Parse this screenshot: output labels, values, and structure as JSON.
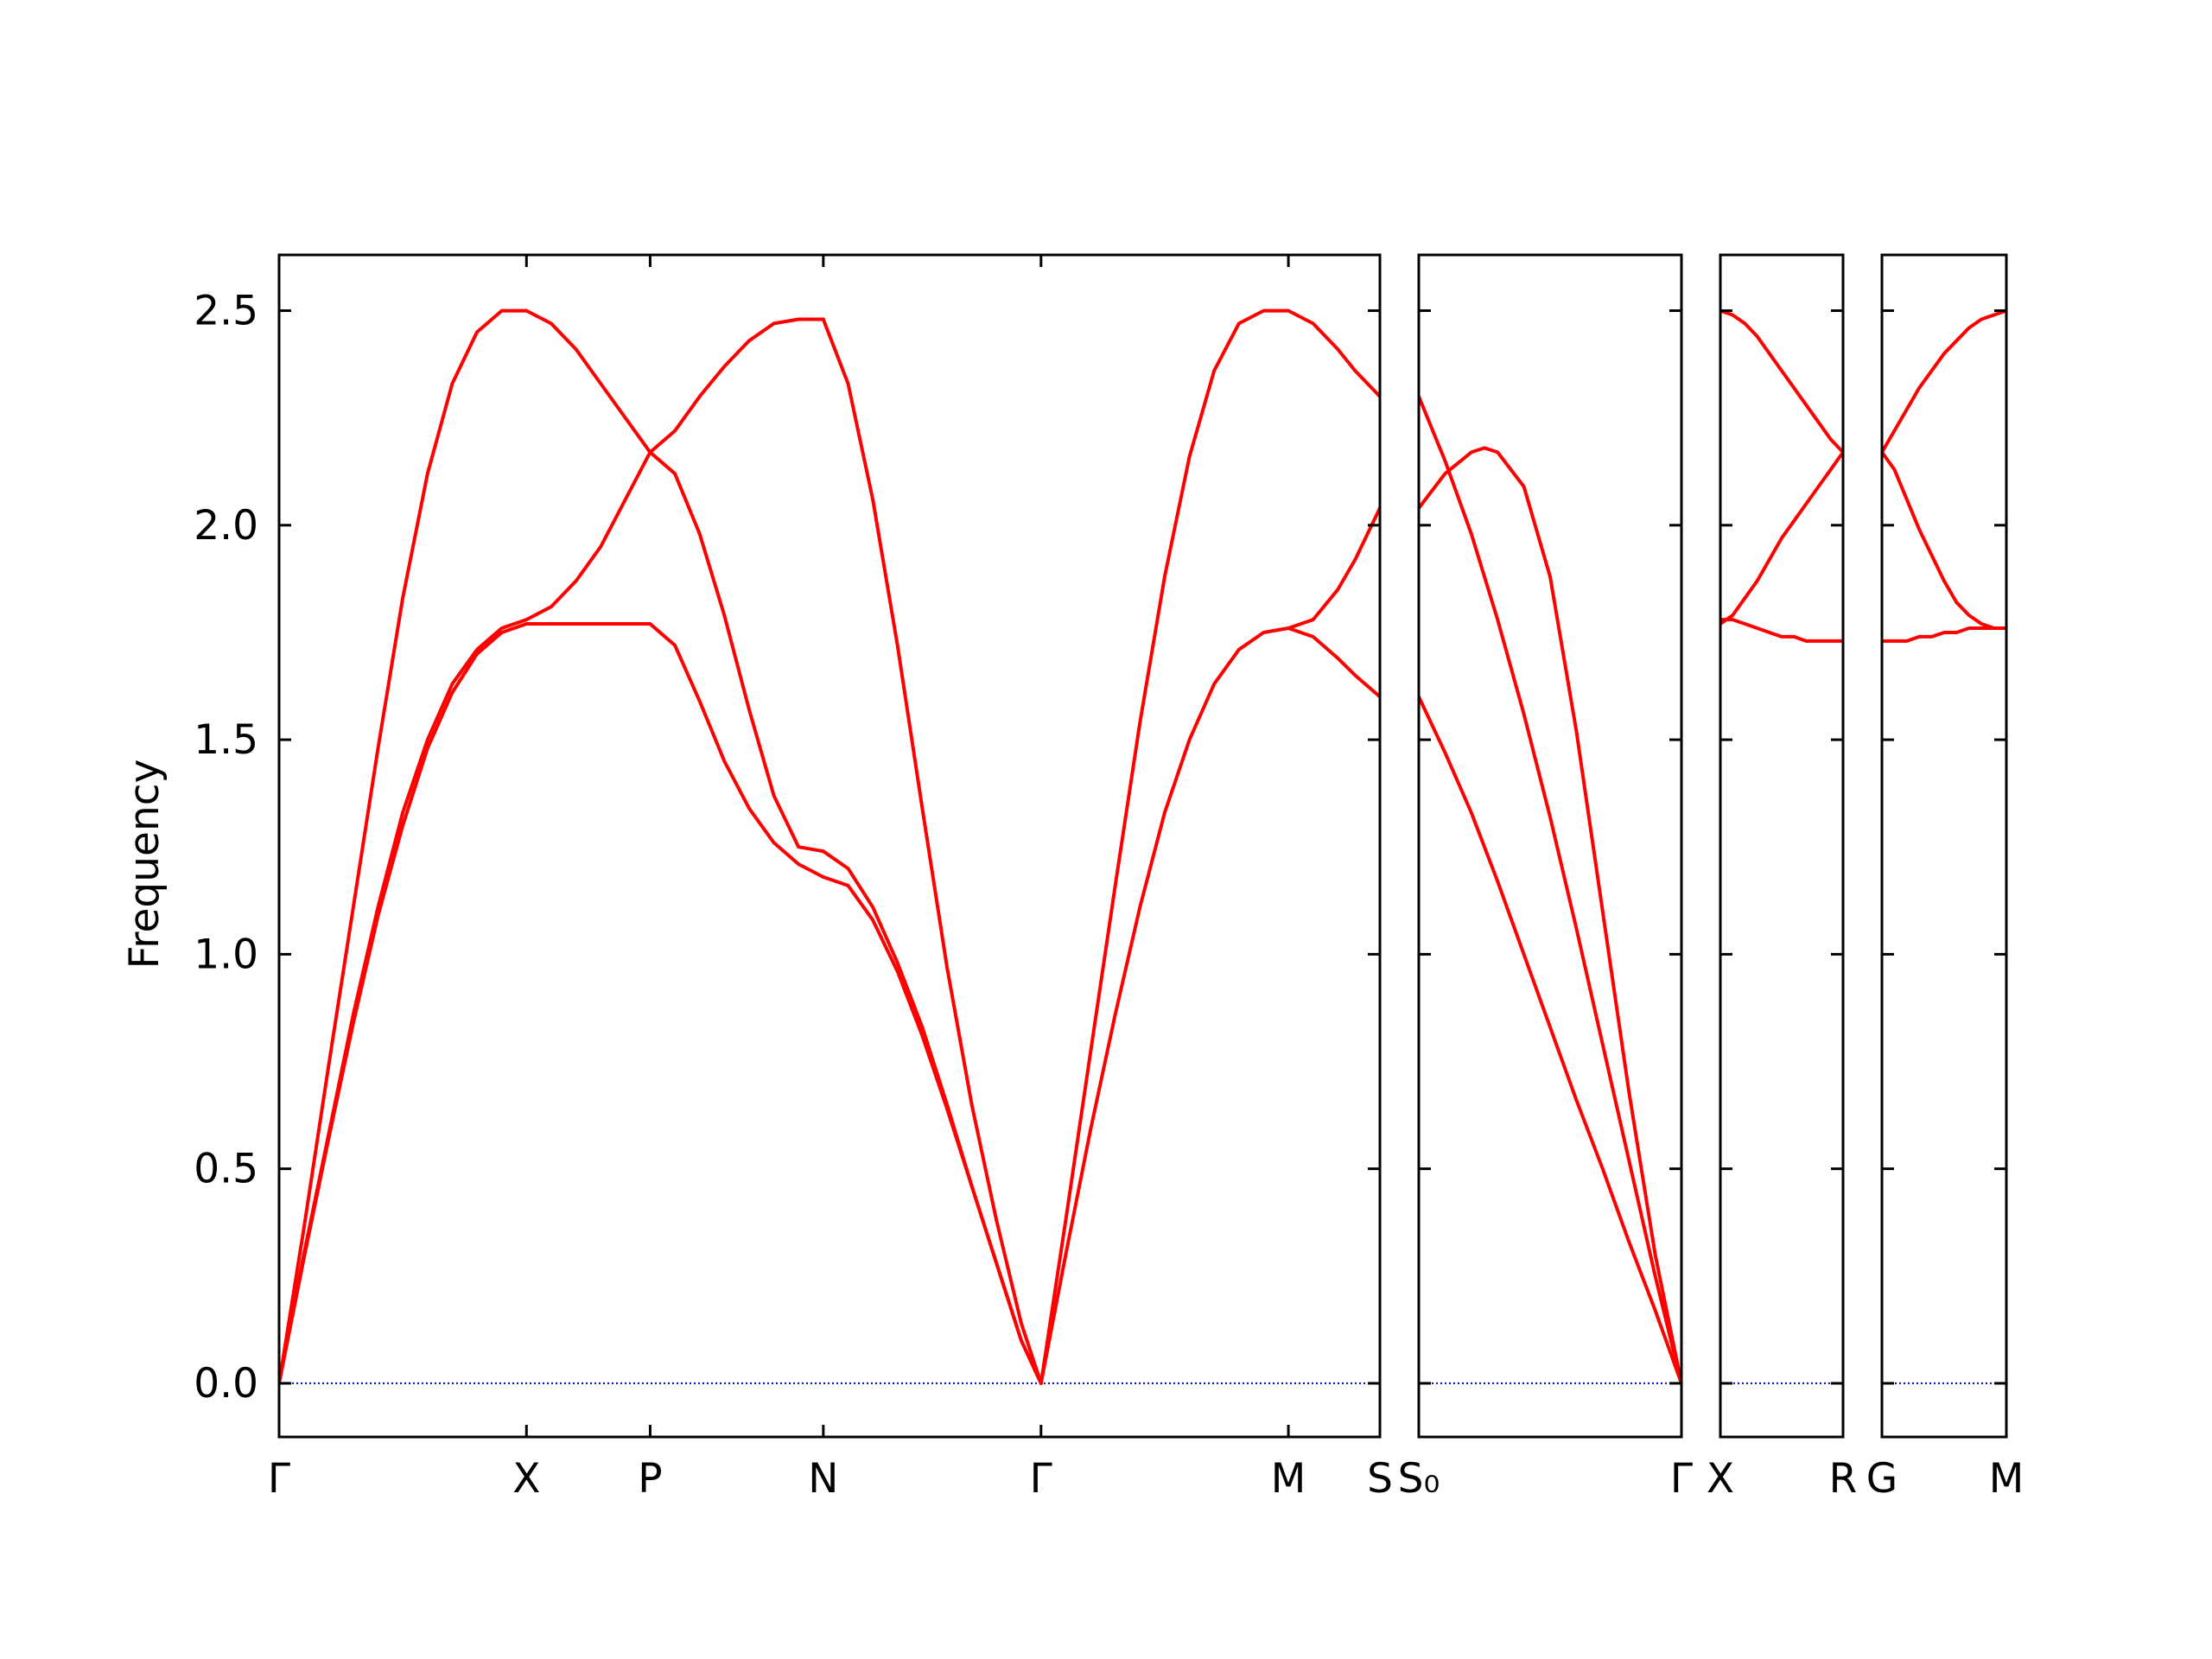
{
  "chart_data": {
    "type": "line",
    "ylabel": "Frequency",
    "ylim": [
      -0.125,
      2.63
    ],
    "yticks": [
      "0.0",
      "0.5",
      "1.0",
      "1.5",
      "2.0",
      "2.5"
    ],
    "yticks_values": [
      0.0,
      0.5,
      1.0,
      1.5,
      2.0,
      2.5
    ],
    "line_color": "#ff0000",
    "zero_line_color": "#0000cc",
    "grid": false,
    "panels": [
      {
        "name": "panel-1",
        "xlim": [
          0,
          4.45
        ],
        "ticks": [
          {
            "label": "Γ",
            "x": 0
          },
          {
            "label": "X",
            "x": 1.0
          },
          {
            "label": "P",
            "x": 1.5
          },
          {
            "label": "N",
            "x": 2.2
          },
          {
            "label": "Γ",
            "x": 3.08
          },
          {
            "label": "M",
            "x": 4.08
          },
          {
            "label": "S",
            "x": 4.45
          }
        ],
        "series": [
          {
            "x": [
              0,
              0.1,
              0.2,
              0.3,
              0.4,
              0.5,
              0.6,
              0.7,
              0.8,
              0.9,
              1.0
            ],
            "y": [
              0,
              0.36,
              0.74,
              1.11,
              1.48,
              1.83,
              2.12,
              2.33,
              2.45,
              2.5,
              2.5
            ]
          },
          {
            "x": [
              0,
              0.1,
              0.2,
              0.3,
              0.4,
              0.5,
              0.6,
              0.7,
              0.8,
              0.9,
              1.0
            ],
            "y": [
              0,
              0.3,
              0.58,
              0.86,
              1.11,
              1.33,
              1.5,
              1.63,
              1.71,
              1.76,
              1.78
            ]
          },
          {
            "x": [
              0,
              0.1,
              0.2,
              0.3,
              0.4,
              0.5,
              0.6,
              0.7,
              0.8,
              0.9,
              1.0
            ],
            "y": [
              0,
              0.29,
              0.57,
              0.84,
              1.09,
              1.3,
              1.48,
              1.61,
              1.7,
              1.75,
              1.77
            ]
          },
          {
            "x": [
              1.0,
              1.1,
              1.2,
              1.3,
              1.4,
              1.5
            ],
            "y": [
              2.5,
              2.47,
              2.41,
              2.33,
              2.25,
              2.17
            ]
          },
          {
            "x": [
              1.0,
              1.1,
              1.2,
              1.3,
              1.4,
              1.5
            ],
            "y": [
              1.78,
              1.81,
              1.87,
              1.95,
              2.06,
              2.17
            ]
          },
          {
            "x": [
              1.0,
              1.1,
              1.2,
              1.3,
              1.4,
              1.5
            ],
            "y": [
              1.77,
              1.77,
              1.77,
              1.77,
              1.77,
              1.77
            ]
          },
          {
            "x": [
              1.5,
              1.6,
              1.7,
              1.8,
              1.9,
              2.0,
              2.1,
              2.2
            ],
            "y": [
              2.17,
              2.22,
              2.3,
              2.37,
              2.43,
              2.47,
              2.48,
              2.48
            ]
          },
          {
            "x": [
              1.5,
              1.6,
              1.7,
              1.8,
              1.9,
              2.0,
              2.1,
              2.2
            ],
            "y": [
              2.17,
              2.12,
              1.98,
              1.79,
              1.57,
              1.37,
              1.25,
              1.24
            ]
          },
          {
            "x": [
              1.5,
              1.6,
              1.7,
              1.8,
              1.9,
              2.0,
              2.1,
              2.2
            ],
            "y": [
              1.77,
              1.72,
              1.59,
              1.45,
              1.34,
              1.26,
              1.21,
              1.18
            ]
          },
          {
            "x": [
              2.2,
              2.3,
              2.4,
              2.5,
              2.6,
              2.7,
              2.8,
              2.9,
              3.0,
              3.08
            ],
            "y": [
              2.48,
              2.33,
              2.06,
              1.72,
              1.34,
              0.97,
              0.65,
              0.38,
              0.14,
              0
            ]
          },
          {
            "x": [
              2.2,
              2.3,
              2.4,
              2.5,
              2.6,
              2.7,
              2.8,
              2.9,
              3.0,
              3.08
            ],
            "y": [
              1.24,
              1.2,
              1.11,
              0.98,
              0.83,
              0.65,
              0.46,
              0.28,
              0.1,
              0
            ]
          },
          {
            "x": [
              2.2,
              2.3,
              2.4,
              2.5,
              2.6,
              2.7,
              2.8,
              2.9,
              3.0,
              3.08
            ],
            "y": [
              1.18,
              1.16,
              1.08,
              0.96,
              0.81,
              0.64,
              0.46,
              0.28,
              0.1,
              0
            ]
          },
          {
            "x": [
              3.08,
              3.18,
              3.28,
              3.38,
              3.48,
              3.58,
              3.68,
              3.78,
              3.88,
              3.98,
              4.08
            ],
            "y": [
              0,
              0.38,
              0.77,
              1.16,
              1.54,
              1.88,
              2.16,
              2.36,
              2.47,
              2.5,
              2.5
            ]
          },
          {
            "x": [
              3.08,
              3.18,
              3.28,
              3.38,
              3.48,
              3.58,
              3.68,
              3.78,
              3.88,
              3.98,
              4.08
            ],
            "y": [
              0,
              0.3,
              0.59,
              0.86,
              1.11,
              1.33,
              1.5,
              1.63,
              1.71,
              1.75,
              1.76
            ]
          },
          {
            "x": [
              4.08,
              4.18,
              4.28,
              4.35,
              4.45
            ],
            "y": [
              2.5,
              2.47,
              2.41,
              2.36,
              2.3
            ]
          },
          {
            "x": [
              4.08,
              4.18,
              4.28,
              4.35,
              4.45
            ],
            "y": [
              1.76,
              1.78,
              1.85,
              1.92,
              2.04
            ]
          },
          {
            "x": [
              4.08,
              4.18,
              4.28,
              4.35,
              4.45
            ],
            "y": [
              1.76,
              1.74,
              1.69,
              1.65,
              1.6
            ]
          }
        ]
      },
      {
        "name": "panel-2",
        "xlim": [
          0,
          1.0
        ],
        "ticks": [
          {
            "label": "S₀",
            "x": 0
          },
          {
            "label": "Γ",
            "x": 1.0
          }
        ],
        "series": [
          {
            "x": [
              0,
              0.1,
              0.2,
              0.3,
              0.4,
              0.5,
              0.6,
              0.7,
              0.8,
              0.9,
              1.0
            ],
            "y": [
              2.3,
              2.15,
              1.98,
              1.78,
              1.56,
              1.32,
              1.06,
              0.79,
              0.52,
              0.25,
              0
            ]
          },
          {
            "x": [
              0,
              0.1,
              0.2,
              0.25,
              0.3,
              0.4,
              0.5,
              0.6,
              0.7,
              0.8,
              0.9,
              1.0
            ],
            "y": [
              2.04,
              2.12,
              2.17,
              2.18,
              2.17,
              2.09,
              1.88,
              1.52,
              1.1,
              0.68,
              0.3,
              0
            ]
          },
          {
            "x": [
              0,
              0.1,
              0.2,
              0.3,
              0.4,
              0.5,
              0.6,
              0.7,
              0.8,
              0.9,
              1.0
            ],
            "y": [
              1.6,
              1.47,
              1.33,
              1.17,
              1.0,
              0.83,
              0.66,
              0.5,
              0.33,
              0.17,
              0
            ]
          }
        ]
      },
      {
        "name": "panel-3",
        "xlim": [
          0,
          1.0
        ],
        "ticks": [
          {
            "label": "X",
            "x": 0
          },
          {
            "label": "R",
            "x": 1.0
          }
        ],
        "series": [
          {
            "x": [
              0,
              0.1,
              0.2,
              0.3,
              0.4,
              0.5,
              0.6,
              0.7,
              0.8,
              0.9,
              1.0
            ],
            "y": [
              2.5,
              2.49,
              2.47,
              2.44,
              2.4,
              2.36,
              2.32,
              2.28,
              2.24,
              2.2,
              2.17
            ]
          },
          {
            "x": [
              0,
              0.1,
              0.2,
              0.3,
              0.4,
              0.5,
              0.6,
              0.7,
              0.8,
              0.9,
              1.0
            ],
            "y": [
              1.77,
              1.79,
              1.83,
              1.87,
              1.92,
              1.97,
              2.01,
              2.05,
              2.09,
              2.13,
              2.17
            ]
          },
          {
            "x": [
              0,
              0.1,
              0.2,
              0.3,
              0.4,
              0.5,
              0.6,
              0.7,
              0.8,
              0.9,
              1.0
            ],
            "y": [
              1.78,
              1.78,
              1.77,
              1.76,
              1.75,
              1.74,
              1.74,
              1.73,
              1.73,
              1.73,
              1.73
            ]
          }
        ]
      },
      {
        "name": "panel-4",
        "xlim": [
          0,
          1.0
        ],
        "ticks": [
          {
            "label": "G",
            "x": 0
          },
          {
            "label": "M",
            "x": 1.0
          }
        ],
        "series": [
          {
            "x": [
              0,
              0.1,
              0.2,
              0.3,
              0.4,
              0.5,
              0.6,
              0.7,
              0.8,
              0.9,
              1.0
            ],
            "y": [
              2.17,
              2.22,
              2.27,
              2.32,
              2.36,
              2.4,
              2.43,
              2.46,
              2.48,
              2.49,
              2.5
            ]
          },
          {
            "x": [
              0,
              0.1,
              0.2,
              0.3,
              0.4,
              0.5,
              0.6,
              0.7,
              0.8,
              0.9,
              1.0
            ],
            "y": [
              2.17,
              2.13,
              2.06,
              1.99,
              1.93,
              1.87,
              1.82,
              1.79,
              1.77,
              1.76,
              1.76
            ]
          },
          {
            "x": [
              0,
              0.1,
              0.2,
              0.3,
              0.4,
              0.5,
              0.6,
              0.7,
              0.8,
              0.9,
              1.0
            ],
            "y": [
              1.73,
              1.73,
              1.73,
              1.74,
              1.74,
              1.75,
              1.75,
              1.76,
              1.76,
              1.76,
              1.76
            ]
          }
        ]
      }
    ]
  }
}
